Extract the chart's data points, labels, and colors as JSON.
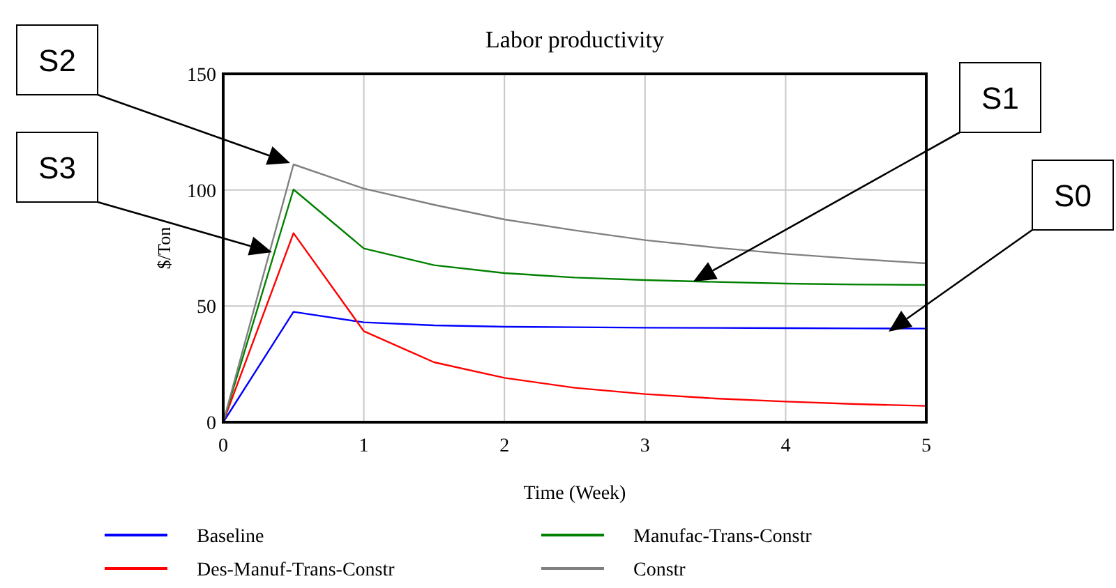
{
  "chart_data": {
    "type": "line",
    "title": "Labor productivity",
    "xlabel": "Time (Week)",
    "ylabel": "$/Ton",
    "x": [
      0,
      0.5,
      1,
      1.5,
      2,
      2.5,
      3,
      3.5,
      4,
      4.5,
      5
    ],
    "series": [
      {
        "name": "Baseline",
        "color": "#0000ff",
        "values": [
          0,
          47.5,
          43,
          41.7,
          41.1,
          40.9,
          40.7,
          40.6,
          40.5,
          40.4,
          40.3
        ]
      },
      {
        "name": "Des-Manuf-Trans-Constr",
        "color": "#ff0000",
        "values": [
          0,
          81.4,
          39.2,
          25.8,
          19.1,
          14.8,
          12.1,
          10.2,
          8.9,
          7.8,
          7.0
        ]
      },
      {
        "name": "Manufac-Trans-Constr",
        "color": "#008000",
        "values": [
          0,
          100.2,
          74.8,
          67.6,
          64.2,
          62.3,
          61.2,
          60.4,
          59.7,
          59.3,
          59.1
        ]
      },
      {
        "name": "Constr",
        "color": "#808080",
        "values": [
          0,
          111,
          100.6,
          93.6,
          87.3,
          82.6,
          78.4,
          75.2,
          72.5,
          70.3,
          68.4
        ]
      }
    ],
    "xlim": [
      0,
      5
    ],
    "xticks": [
      0,
      1,
      2,
      3,
      4,
      5
    ],
    "ylim": [
      0,
      150
    ],
    "yticks": [
      0,
      50,
      100,
      150
    ],
    "grid": true,
    "legend": "bottom",
    "marker": "none",
    "line_style": "solid",
    "annotations": [
      "S2",
      "S3",
      "S1",
      "S0"
    ]
  }
}
